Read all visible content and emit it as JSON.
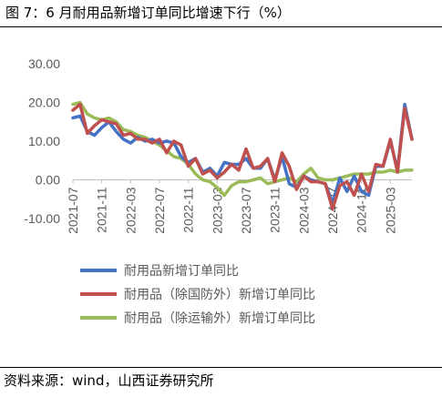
{
  "title": "图 7：6 月耐用品新增订单同比增速下行（%）",
  "source": "资料来源：wind，山西证券研究所",
  "chart_data": {
    "type": "line",
    "title": "图 7：6 月耐用品新增订单同比增速下行（%）",
    "xlabel": "",
    "ylabel": "",
    "ylim": [
      -10,
      30
    ],
    "yticks": [
      "30.00",
      "20.00",
      "10.00",
      "0.00",
      "-10.00"
    ],
    "ytick_values": [
      30,
      20,
      10,
      0,
      -10
    ],
    "grid": false,
    "legend_position": "bottom",
    "x": [
      "2021-07",
      "2021-08",
      "2021-09",
      "2021-10",
      "2021-11",
      "2021-12",
      "2022-01",
      "2022-02",
      "2022-03",
      "2022-04",
      "2022-05",
      "2022-06",
      "2022-07",
      "2022-08",
      "2022-09",
      "2022-10",
      "2022-11",
      "2022-12",
      "2023-01",
      "2023-02",
      "2023-03",
      "2023-04",
      "2023-05",
      "2023-06",
      "2023-07",
      "2023-08",
      "2023-09",
      "2023-10",
      "2023-11",
      "2023-12",
      "2024-01",
      "2024-02",
      "2024-03",
      "2024-04",
      "2024-05",
      "2024-06",
      "2024-07",
      "2024-08",
      "2024-09",
      "2024-10",
      "2024-11",
      "2024-12",
      "2025-01",
      "2025-02",
      "2025-03",
      "2025-04",
      "2025-05",
      "2025-06"
    ],
    "xtick_labels": [
      "2021-07",
      "2021-11",
      "2022-03",
      "2022-07",
      "2022-11",
      "2023-03",
      "2023-07",
      "2023-11",
      "2024-03",
      "2024-07",
      "2024-11",
      "2025-03"
    ],
    "series": [
      {
        "name": "耐用品新增订单同比",
        "color": "#4472C4",
        "values": [
          16,
          16.5,
          12.5,
          11.5,
          13.5,
          15,
          12.5,
          10.5,
          9.5,
          11,
          10,
          10.5,
          9.5,
          10,
          9.5,
          6,
          4.5,
          5.5,
          2,
          3,
          1,
          4.5,
          4,
          4,
          5.5,
          3,
          3,
          5.5,
          0,
          6,
          -1,
          -2,
          1,
          0,
          -0.5,
          -1,
          -6,
          0.5,
          -3,
          1,
          -3,
          -4,
          3.5,
          3.5,
          10,
          2.5,
          19.5,
          10.5
        ]
      },
      {
        "name": "耐用品（除国防外）新增订单同比",
        "color": "#C0504D",
        "values": [
          18,
          19.5,
          12,
          14,
          15.5,
          15,
          14.5,
          11.5,
          12,
          10.5,
          10.5,
          9.5,
          10.5,
          7,
          10,
          9,
          3.5,
          5.5,
          1.5,
          2.5,
          0.5,
          2,
          4,
          2.5,
          8,
          3,
          3.5,
          5.5,
          -0.5,
          7,
          3.5,
          -2.5,
          1,
          -0.5,
          -0.5,
          -1,
          -7.5,
          -1.5,
          -0.5,
          -4,
          1.5,
          -3,
          4,
          3.5,
          10.5,
          2,
          18.5,
          10.5
        ]
      },
      {
        "name": "耐用品（除运输外）新增订单同比",
        "color": "#9BBB59",
        "values": [
          19.5,
          20,
          17,
          16,
          15.5,
          16,
          15,
          13,
          12.5,
          11.5,
          11,
          10,
          9,
          7.5,
          6,
          5.5,
          4,
          1.5,
          0,
          -0.5,
          -2,
          -4,
          -1.5,
          -0.5,
          -0.5,
          0,
          0.5,
          -1,
          -0.5,
          0,
          0.5,
          -0.5,
          1.5,
          3,
          0.5,
          0,
          0,
          0.5,
          1,
          1.5,
          1.5,
          1.5,
          2,
          2,
          2.5,
          2,
          2.5,
          2.5
        ]
      }
    ]
  }
}
